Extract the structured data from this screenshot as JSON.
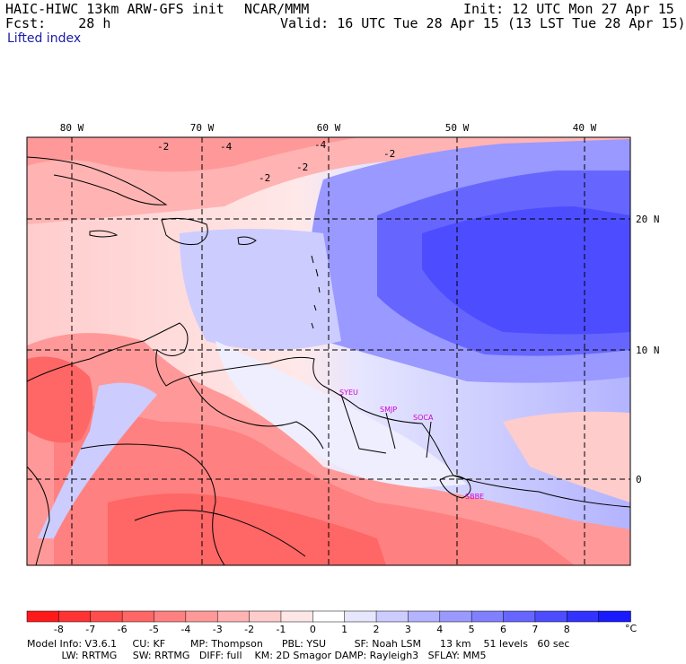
{
  "header": {
    "model": "HAIC-HIWC 13km ARW-GFS init",
    "center": "NCAR/MMM",
    "init": "Init: 12 UTC Mon 27 Apr 15",
    "fcst": "Fcst:    28 h",
    "valid": "Valid: 16 UTC Tue 28 Apr 15 (13 LST Tue 28 Apr 15)",
    "field": "Lifted index"
  },
  "map": {
    "lon_labels": [
      "80 W",
      "70 W",
      "60 W",
      "50 W",
      "40 W"
    ],
    "lat_labels": [
      "20 N",
      "10 N",
      "0"
    ],
    "stations": [
      "SYEU",
      "SMJP",
      "SOCA",
      "SBBE"
    ],
    "contour_labels": [
      "-2",
      "-4",
      "-4",
      "-2",
      "-2",
      "-2"
    ]
  },
  "colorbar": {
    "labels": [
      "-8",
      "-7",
      "-6",
      "-5",
      "-4",
      "-3",
      "-2",
      "-1",
      "0",
      "1",
      "2",
      "3",
      "4",
      "5",
      "6",
      "7",
      "8"
    ],
    "unit": "°C",
    "colors": [
      "#ff1a1a",
      "#ff3333",
      "#ff4d4d",
      "#ff6666",
      "#ff8080",
      "#ff9999",
      "#ffb3b3",
      "#ffcccc",
      "#ffe6e6",
      "#ffffff",
      "#e6e6ff",
      "#ccccff",
      "#b3b3ff",
      "#9999ff",
      "#8080ff",
      "#6666ff",
      "#4d4dff",
      "#3333ff",
      "#1a1aff"
    ]
  },
  "footer": {
    "line1": "Model Info: V3.6.1     CU: KF        MP: Thompson      PBL: YSU         SF: Noah LSM      13 km    51 levels   60 sec",
    "line2": "           LW: RRTMG     SW: RRTMG   DIFF: full    KM: 2D Smagor DAMP: Rayleigh3   SFLAY: MM5"
  }
}
